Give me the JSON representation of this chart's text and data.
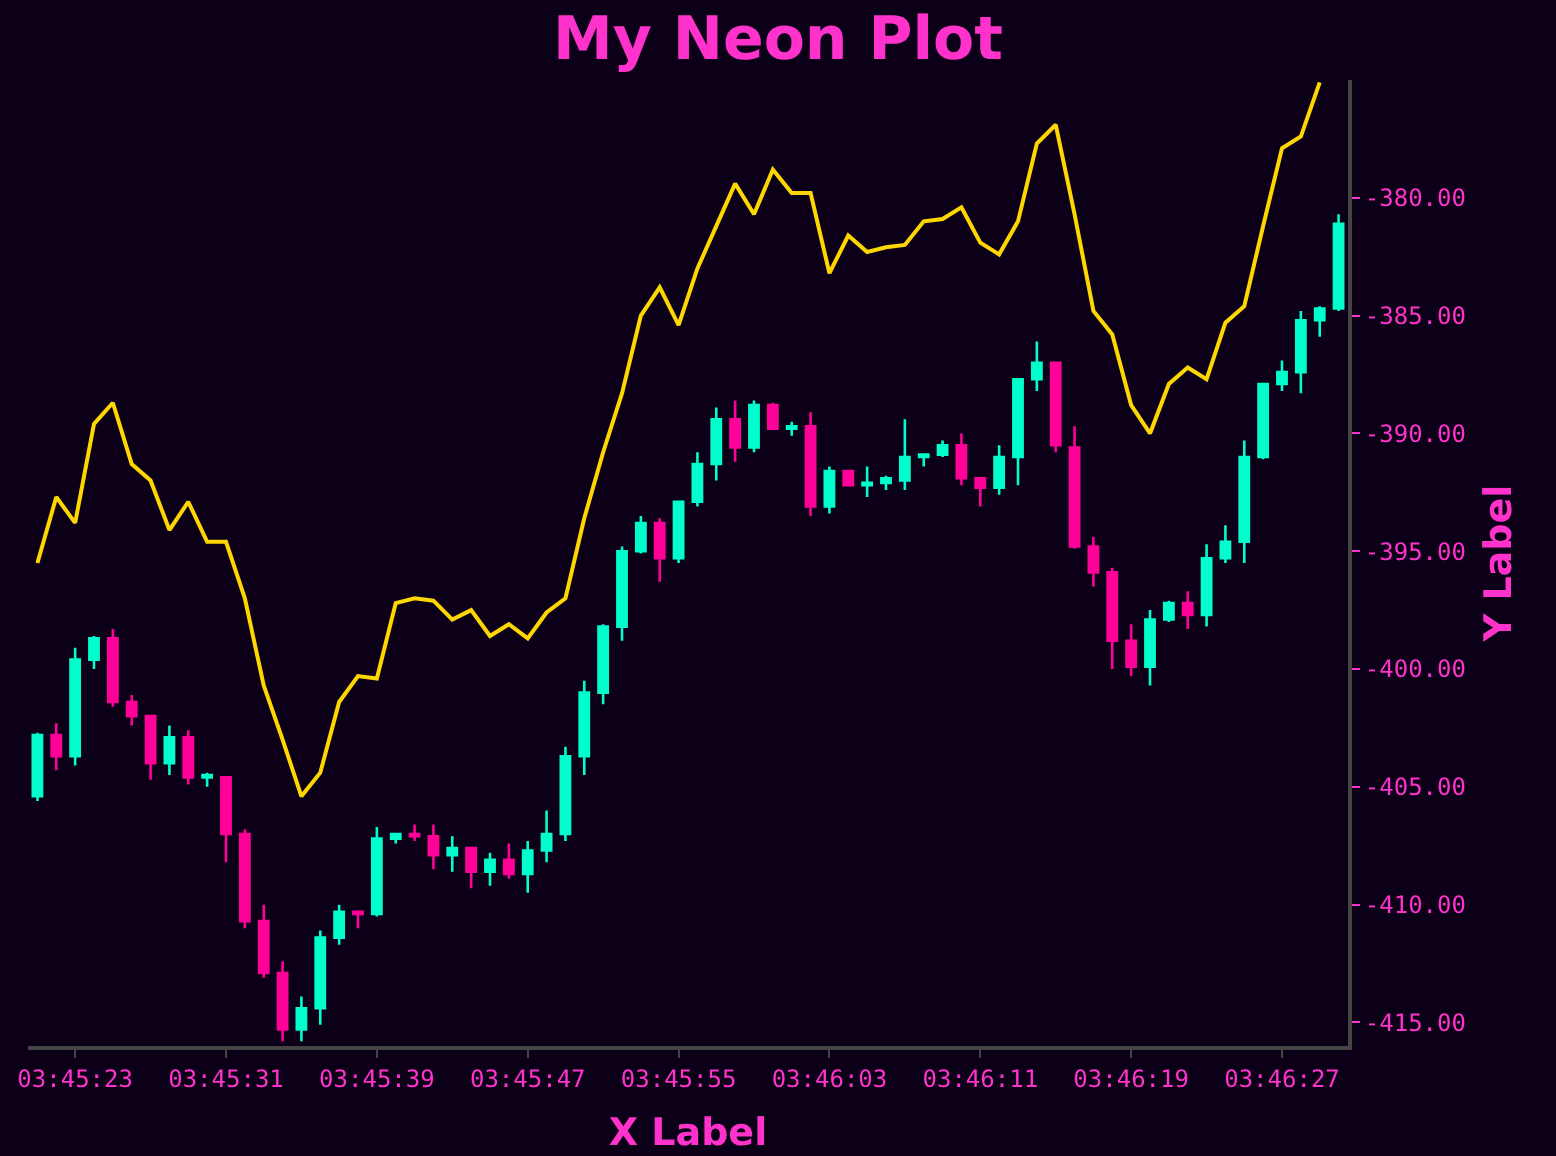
{
  "chart_data": {
    "type": "candlestick",
    "title": "My Neon Plot",
    "xlabel": "X Label",
    "ylabel": "Y Label",
    "categories": [
      null,
      null,
      "03:45:23",
      null,
      null,
      null,
      null,
      null,
      null,
      null,
      "03:45:31",
      null,
      null,
      null,
      null,
      null,
      null,
      null,
      "03:45:39",
      null,
      null,
      null,
      null,
      null,
      null,
      null,
      "03:45:47",
      null,
      null,
      null,
      null,
      null,
      null,
      null,
      "03:45:55",
      null,
      null,
      null,
      null,
      null,
      null,
      null,
      "03:46:03",
      null,
      null,
      null,
      null,
      null,
      null,
      null,
      "03:46:11",
      null,
      null,
      null,
      null,
      null,
      null,
      null,
      "03:46:19",
      null,
      null,
      null,
      null,
      null,
      null,
      null,
      "03:46:27",
      null,
      null,
      null
    ],
    "ohlc": [
      [
        -405.4,
        -402.7,
        -405.6,
        -402.8
      ],
      [
        -402.8,
        -402.3,
        -404.3,
        -403.7
      ],
      [
        -403.7,
        -399.1,
        -404.1,
        -399.6
      ],
      [
        -399.6,
        -398.6,
        -400.0,
        -398.7
      ],
      [
        -398.7,
        -398.3,
        -401.6,
        -401.4
      ],
      [
        -401.4,
        -401.1,
        -402.4,
        -402.0
      ],
      [
        -402.0,
        -402.0,
        -404.7,
        -404.0
      ],
      [
        -404.0,
        -402.4,
        -404.5,
        -402.9
      ],
      [
        -402.9,
        -402.6,
        -404.9,
        -404.6
      ],
      [
        -404.6,
        -404.4,
        -405.0,
        -404.5
      ],
      [
        -404.6,
        -404.6,
        -408.2,
        -407.0
      ],
      [
        -407.0,
        -406.8,
        -411.0,
        -410.7
      ],
      [
        -410.7,
        -410.0,
        -413.1,
        -412.9
      ],
      [
        -412.9,
        -412.4,
        -415.8,
        -415.3
      ],
      [
        -415.3,
        -413.9,
        -415.8,
        -414.4
      ],
      [
        -414.4,
        -411.1,
        -415.1,
        -411.4
      ],
      [
        -411.4,
        -410.0,
        -411.7,
        -410.3
      ],
      [
        -410.3,
        -410.3,
        -411.0,
        -410.4
      ],
      [
        -410.4,
        -406.7,
        -410.5,
        -407.2
      ],
      [
        -407.2,
        -407.0,
        -407.4,
        -407.0
      ],
      [
        -407.0,
        -406.6,
        -407.3,
        -407.1
      ],
      [
        -407.1,
        -406.6,
        -408.5,
        -407.9
      ],
      [
        -407.9,
        -407.1,
        -408.6,
        -407.6
      ],
      [
        -407.6,
        -407.6,
        -409.3,
        -408.6
      ],
      [
        -408.6,
        -407.8,
        -409.2,
        -408.1
      ],
      [
        -408.1,
        -407.4,
        -408.9,
        -408.7
      ],
      [
        -408.7,
        -407.3,
        -409.5,
        -407.7
      ],
      [
        -407.7,
        -406.0,
        -408.2,
        -407.0
      ],
      [
        -407.0,
        -403.3,
        -407.3,
        -403.7
      ],
      [
        -403.7,
        -400.5,
        -404.5,
        -401.0
      ],
      [
        -401.0,
        -398.1,
        -401.5,
        -398.2
      ],
      [
        -398.2,
        -394.8,
        -398.8,
        -395.0
      ],
      [
        -395.0,
        -393.5,
        -395.1,
        -393.8
      ],
      [
        -393.8,
        -393.6,
        -396.3,
        -395.3
      ],
      [
        -395.3,
        -392.9,
        -395.5,
        -392.9
      ],
      [
        -392.9,
        -390.8,
        -393.1,
        -391.3
      ],
      [
        -391.3,
        -388.9,
        -392.0,
        -389.4
      ],
      [
        -389.4,
        -388.6,
        -391.2,
        -390.6
      ],
      [
        -390.6,
        -388.6,
        -390.8,
        -388.8
      ],
      [
        -388.8,
        -388.7,
        -389.8,
        -389.8
      ],
      [
        -389.8,
        -389.5,
        -390.1,
        -389.7
      ],
      [
        -389.7,
        -389.1,
        -393.5,
        -393.1
      ],
      [
        -393.1,
        -391.4,
        -393.4,
        -391.6
      ],
      [
        -391.6,
        -391.6,
        -392.2,
        -392.2
      ],
      [
        -392.2,
        -391.4,
        -392.7,
        -392.1
      ],
      [
        -392.1,
        -391.8,
        -392.4,
        -391.9
      ],
      [
        -392.0,
        -389.4,
        -392.4,
        -391.0
      ],
      [
        -391.0,
        -390.9,
        -391.4,
        -390.9
      ],
      [
        -390.9,
        -390.3,
        -391.0,
        -390.5
      ],
      [
        -390.5,
        -390.0,
        -392.2,
        -391.9
      ],
      [
        -391.9,
        -391.9,
        -393.1,
        -392.3
      ],
      [
        -392.3,
        -390.5,
        -392.6,
        -391.0
      ],
      [
        -391.0,
        -387.7,
        -392.2,
        -387.7
      ],
      [
        -387.7,
        -386.1,
        -388.2,
        -387.0
      ],
      [
        -387.0,
        -387.0,
        -390.8,
        -390.5
      ],
      [
        -390.6,
        -389.7,
        -394.9,
        -394.8
      ],
      [
        -394.8,
        -394.4,
        -396.5,
        -395.9
      ],
      [
        -395.9,
        -395.7,
        -400.0,
        -398.8
      ],
      [
        -398.8,
        -398.1,
        -400.3,
        -399.9
      ],
      [
        -399.9,
        -397.5,
        -400.7,
        -397.9
      ],
      [
        -397.9,
        -397.1,
        -398.0,
        -397.2
      ],
      [
        -397.2,
        -396.7,
        -398.3,
        -397.7
      ],
      [
        -397.7,
        -394.7,
        -398.2,
        -395.3
      ],
      [
        -395.3,
        -393.9,
        -395.5,
        -394.6
      ],
      [
        -394.6,
        -390.3,
        -395.5,
        -391.0
      ],
      [
        -391.0,
        -387.9,
        -391.1,
        -387.9
      ],
      [
        -387.9,
        -386.9,
        -388.2,
        -387.4
      ],
      [
        -387.4,
        -384.8,
        -388.3,
        -385.2
      ],
      [
        -385.2,
        -384.6,
        -385.9,
        -384.7
      ],
      [
        -384.7,
        -380.7,
        -384.8,
        -381.1
      ]
    ],
    "colors": [
      "#00ffcc",
      "#ff0099",
      "#00ffcc",
      "#00ffcc",
      "#ff0099",
      "#ff0099",
      "#ff0099",
      "#00ffcc",
      "#ff0099",
      "#00ffcc",
      "#ff0099",
      "#ff0099",
      "#ff0099",
      "#ff0099",
      "#00ffcc",
      "#00ffcc",
      "#00ffcc",
      "#ff0099",
      "#00ffcc",
      "#00ffcc",
      "#ff0099",
      "#ff0099",
      "#00ffcc",
      "#ff0099",
      "#00ffcc",
      "#ff0099",
      "#00ffcc",
      "#00ffcc",
      "#00ffcc",
      "#00ffcc",
      "#00ffcc",
      "#00ffcc",
      "#00ffcc",
      "#ff0099",
      "#00ffcc",
      "#00ffcc",
      "#00ffcc",
      "#ff0099",
      "#00ffcc",
      "#ff0099",
      "#00ffcc",
      "#ff0099",
      "#00ffcc",
      "#ff0099",
      "#00ffcc",
      "#00ffcc",
      "#00ffcc",
      "#00ffcc",
      "#00ffcc",
      "#ff0099",
      "#ff0099",
      "#00ffcc",
      "#00ffcc",
      "#00ffcc",
      "#ff0099",
      "#ff0099",
      "#ff0099",
      "#ff0099",
      "#ff0099",
      "#00ffcc",
      "#00ffcc",
      "#ff0099",
      "#00ffcc",
      "#00ffcc",
      "#00ffcc",
      "#00ffcc",
      "#00ffcc",
      "#00ffcc",
      "#00ffcc",
      "#00ffcc"
    ],
    "series": [
      {
        "type": "line",
        "color": "#ffd700",
        "values": [
          -395.5,
          -392.7,
          -393.8,
          -389.6,
          -388.7,
          -391.3,
          -392.0,
          -394.1,
          -392.9,
          -394.6,
          -394.6,
          -397.0,
          -400.7,
          -403.0,
          -405.4,
          -404.4,
          -401.4,
          -400.3,
          -400.4,
          -397.2,
          -397.0,
          -397.1,
          -397.9,
          -397.5,
          -398.6,
          -398.1,
          -398.7,
          -397.6,
          -397.0,
          -393.6,
          -390.8,
          -388.3,
          -385.0,
          -383.8,
          -385.4,
          -383.0,
          -381.2,
          -379.4,
          -380.7,
          -378.8,
          -379.8,
          -379.8,
          -383.2,
          -381.6,
          -382.3,
          -382.1,
          -382.0,
          -381.0,
          -380.9,
          -380.4,
          -381.9,
          -382.4,
          -381.0,
          -377.7,
          -376.9,
          -380.7,
          -384.8,
          -385.8,
          -388.8,
          -390.0,
          -387.9,
          -387.2,
          -387.7,
          -385.3,
          -384.6,
          -381.2,
          -377.9,
          -377.4,
          -375.1,
          null
        ]
      }
    ],
    "ylim": [
      -416.0,
      -375.0
    ],
    "yticks": [
      {
        "value": -380,
        "label": "-380.00"
      },
      {
        "value": -385,
        "label": "-385.00"
      },
      {
        "value": -390,
        "label": "-390.00"
      },
      {
        "value": -395,
        "label": "-395.00"
      },
      {
        "value": -400,
        "label": "-400.00"
      },
      {
        "value": -405,
        "label": "-405.00"
      },
      {
        "value": -410,
        "label": "-410.00"
      },
      {
        "value": -415,
        "label": "-415.00"
      }
    ]
  }
}
